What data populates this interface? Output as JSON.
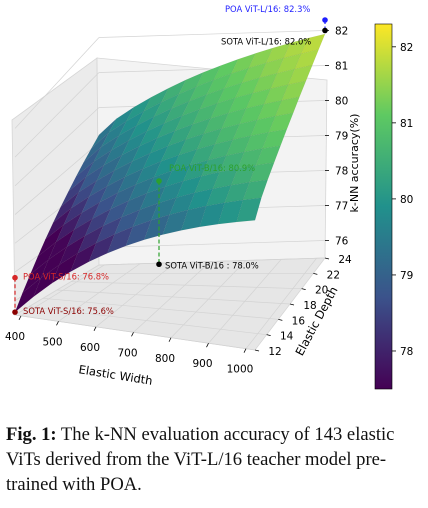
{
  "chart_data": {
    "type": "surface3d",
    "xlabel": "Elastic Width",
    "ylabel": "Elastic Depth",
    "zlabel": "k-NN accuracy(%)",
    "x_ticks": [
      "400",
      "500",
      "600",
      "700",
      "800",
      "900",
      "1000"
    ],
    "y_ticks": [
      "12",
      "14",
      "16",
      "18",
      "20",
      "22",
      "24"
    ],
    "z_ticks": [
      "76",
      "77",
      "78",
      "79",
      "80",
      "81",
      "82"
    ],
    "colorbar_ticks": [
      "78",
      "79",
      "80",
      "81",
      "82"
    ],
    "colormap": [
      "#440154",
      "#3b528b",
      "#21918c",
      "#5ec962",
      "#fde725"
    ],
    "xlim": [
      384,
      1024
    ],
    "ylim": [
      12,
      24
    ],
    "zlim": [
      75.5,
      82.3
    ],
    "points": [
      {
        "name": "POA ViT-L/16",
        "x": 1024,
        "y": 24,
        "z": 82.3,
        "label": "POA ViT-L/16:  82.3%",
        "color": "#1f1fff"
      },
      {
        "name": "SOTA ViT-L/16",
        "x": 1024,
        "y": 24,
        "z": 82.0,
        "label": "SOTA ViT-L/16:  82.0%",
        "color": "#000000"
      },
      {
        "name": "POA ViT-B/16",
        "x": 768,
        "y": 12,
        "z": 80.9,
        "label": "POA ViT-B/16:  80.9%",
        "color": "#2ca02c"
      },
      {
        "name": "SOTA ViT-B/16",
        "x": 768,
        "y": 12,
        "z": 78.0,
        "label": "SOTA ViT-B/16 : 78.0%",
        "color": "#000000"
      },
      {
        "name": "POA ViT-S/16",
        "x": 384,
        "y": 12,
        "z": 76.8,
        "label": "POA ViT-S/16:  76.8%",
        "color": "#d62728"
      },
      {
        "name": "SOTA ViT-S/16",
        "x": 384,
        "y": 12,
        "z": 75.6,
        "label": "SOTA ViT-S/16:  75.6%",
        "color": "#8b0000"
      }
    ]
  },
  "caption": {
    "label": "Fig. 1:",
    "text": " The k-NN evaluation accuracy of 143 elastic ViTs derived from the ViT-L/16 teacher model pre-trained with POA."
  }
}
